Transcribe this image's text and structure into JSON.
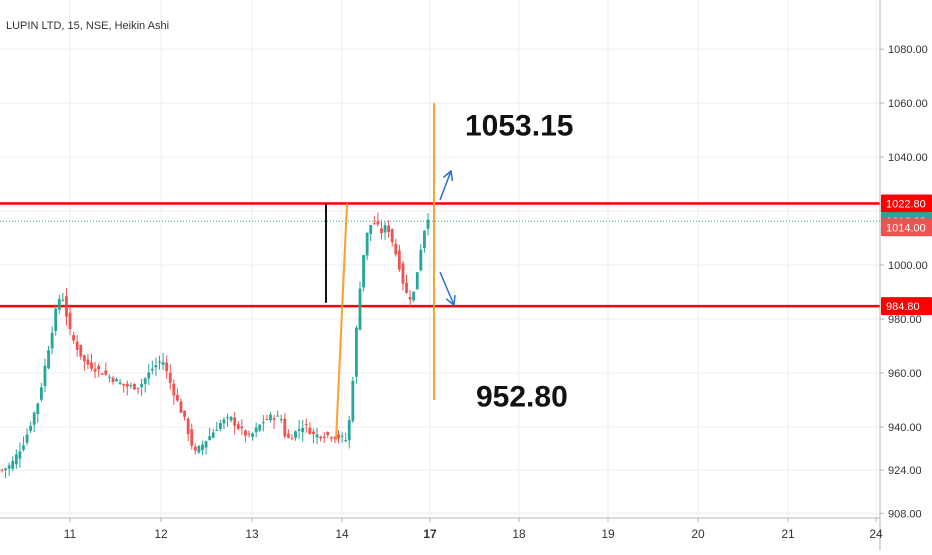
{
  "chart_title": "LUPIN LTD, 15, NSE, Heikin Ashi",
  "colors": {
    "up": "#26a69a",
    "down": "#ef5350",
    "level_line": "#ff0000",
    "orange_line": "#f7a233",
    "arrow": "#2a6fd4",
    "price_line": "#26a69a",
    "grid": "#eeeeee",
    "axis_line": "#b2b5be"
  },
  "chart_data": {
    "type": "candlestick",
    "title": "LUPIN LTD, 15, NSE, Heikin Ashi",
    "y_axis": {
      "ticks": [
        "908.00",
        "924.00",
        "940.00",
        "960.00",
        "980.00",
        "1000.00",
        "1020.00",
        "1040.00",
        "1060.00",
        "1080.00"
      ],
      "ylim": [
        907,
        1096
      ]
    },
    "x_axis": {
      "ticks": [
        "11",
        "12",
        "13",
        "14",
        "17",
        "18",
        "19",
        "20",
        "21",
        "24"
      ],
      "bold_tick": "17"
    },
    "series_shape": [
      [
        0,
        924
      ],
      [
        2,
        926
      ],
      [
        5,
        935
      ],
      [
        8,
        950
      ],
      [
        10,
        968
      ],
      [
        12,
        985
      ],
      [
        13,
        990
      ],
      [
        15,
        974
      ],
      [
        18,
        964
      ],
      [
        20,
        962
      ],
      [
        24,
        958
      ],
      [
        27,
        955
      ],
      [
        30,
        955
      ],
      [
        33,
        962
      ],
      [
        35,
        965
      ],
      [
        37,
        955
      ],
      [
        40,
        942
      ],
      [
        42,
        930
      ],
      [
        45,
        936
      ],
      [
        48,
        942
      ],
      [
        50,
        943
      ],
      [
        52,
        939
      ],
      [
        54,
        936
      ],
      [
        57,
        942
      ],
      [
        59,
        944
      ],
      [
        61,
        943
      ],
      [
        62,
        935
      ],
      [
        64,
        938
      ],
      [
        66,
        941
      ],
      [
        68,
        937
      ],
      [
        71,
        937
      ],
      [
        74,
        936
      ],
      [
        75,
        935
      ],
      [
        76,
        944
      ],
      [
        77,
        968
      ],
      [
        78,
        990
      ],
      [
        79,
        1005
      ],
      [
        80,
        1014
      ],
      [
        81,
        1016
      ],
      [
        82,
        1014
      ],
      [
        83,
        1012
      ],
      [
        84,
        1015
      ],
      [
        85,
        1010
      ],
      [
        86,
        1004
      ],
      [
        87,
        998
      ],
      [
        88,
        990
      ],
      [
        89,
        988
      ],
      [
        90,
        990
      ],
      [
        91,
        1002
      ],
      [
        92,
        1012
      ],
      [
        93,
        1018
      ]
    ],
    "levels": [
      {
        "label": "1022.80",
        "value": 1022.8
      },
      {
        "label": "984.80",
        "value": 984.8
      }
    ],
    "price_badges": [
      {
        "label": "1016.30",
        "value": 1016.3,
        "color": "#26a69a"
      },
      {
        "label": "1014.00",
        "value": 1014.0,
        "color": "#ef5350"
      }
    ],
    "annotations": [
      {
        "text": "1053.15",
        "value": 1053.15
      },
      {
        "text": "952.80",
        "value": 952.8
      }
    ],
    "projection_vertical": {
      "from": 1060,
      "to": 950
    },
    "range_marker": {
      "from": 1022.8,
      "to": 986
    },
    "impulse_line": {
      "from": 935,
      "to": 1022.8
    }
  }
}
